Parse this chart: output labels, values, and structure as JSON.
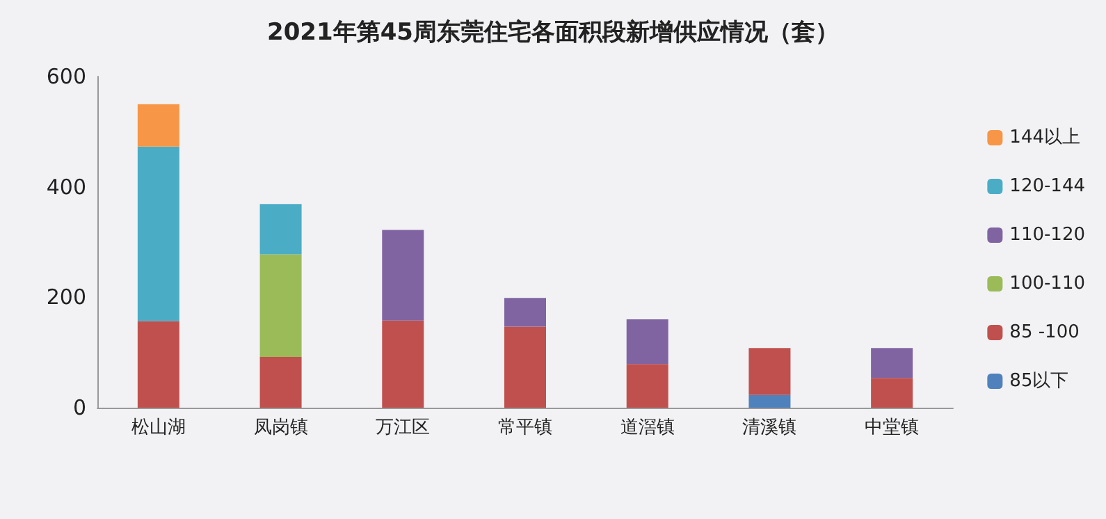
{
  "chart_data": {
    "type": "bar",
    "title": "2021年第45周东莞住宅各面积段新增供应情况（套）",
    "stacked": true,
    "legend": "right",
    "grid": false,
    "categories": [
      "松山湖",
      "凤岗镇",
      "万江区",
      "常平镇",
      "道滘镇",
      "清溪镇",
      "中堂镇"
    ],
    "series": [
      {
        "name": "85以下",
        "color": "#4f81bd",
        "values": [
          null,
          null,
          null,
          null,
          null,
          23,
          null
        ]
      },
      {
        "name": "85 -100",
        "color": "#c0504d",
        "values": [
          157,
          92,
          158,
          147,
          79,
          85,
          54
        ]
      },
      {
        "name": "100-110",
        "color": "#9bbb59",
        "values": [
          null,
          186,
          null,
          null,
          null,
          null,
          null
        ]
      },
      {
        "name": "110-120",
        "color": "#8064a2",
        "values": [
          null,
          null,
          164,
          52,
          81,
          null,
          54
        ]
      },
      {
        "name": "120-144",
        "color": "#4bacc6",
        "values": [
          316,
          91,
          null,
          null,
          null,
          null,
          null
        ]
      },
      {
        "name": "144以上",
        "color": "#f79646",
        "values": [
          77,
          null,
          null,
          null,
          null,
          null,
          null
        ]
      }
    ],
    "ylim": [
      0,
      600
    ],
    "yticks": [
      0,
      200,
      400,
      600
    ]
  }
}
